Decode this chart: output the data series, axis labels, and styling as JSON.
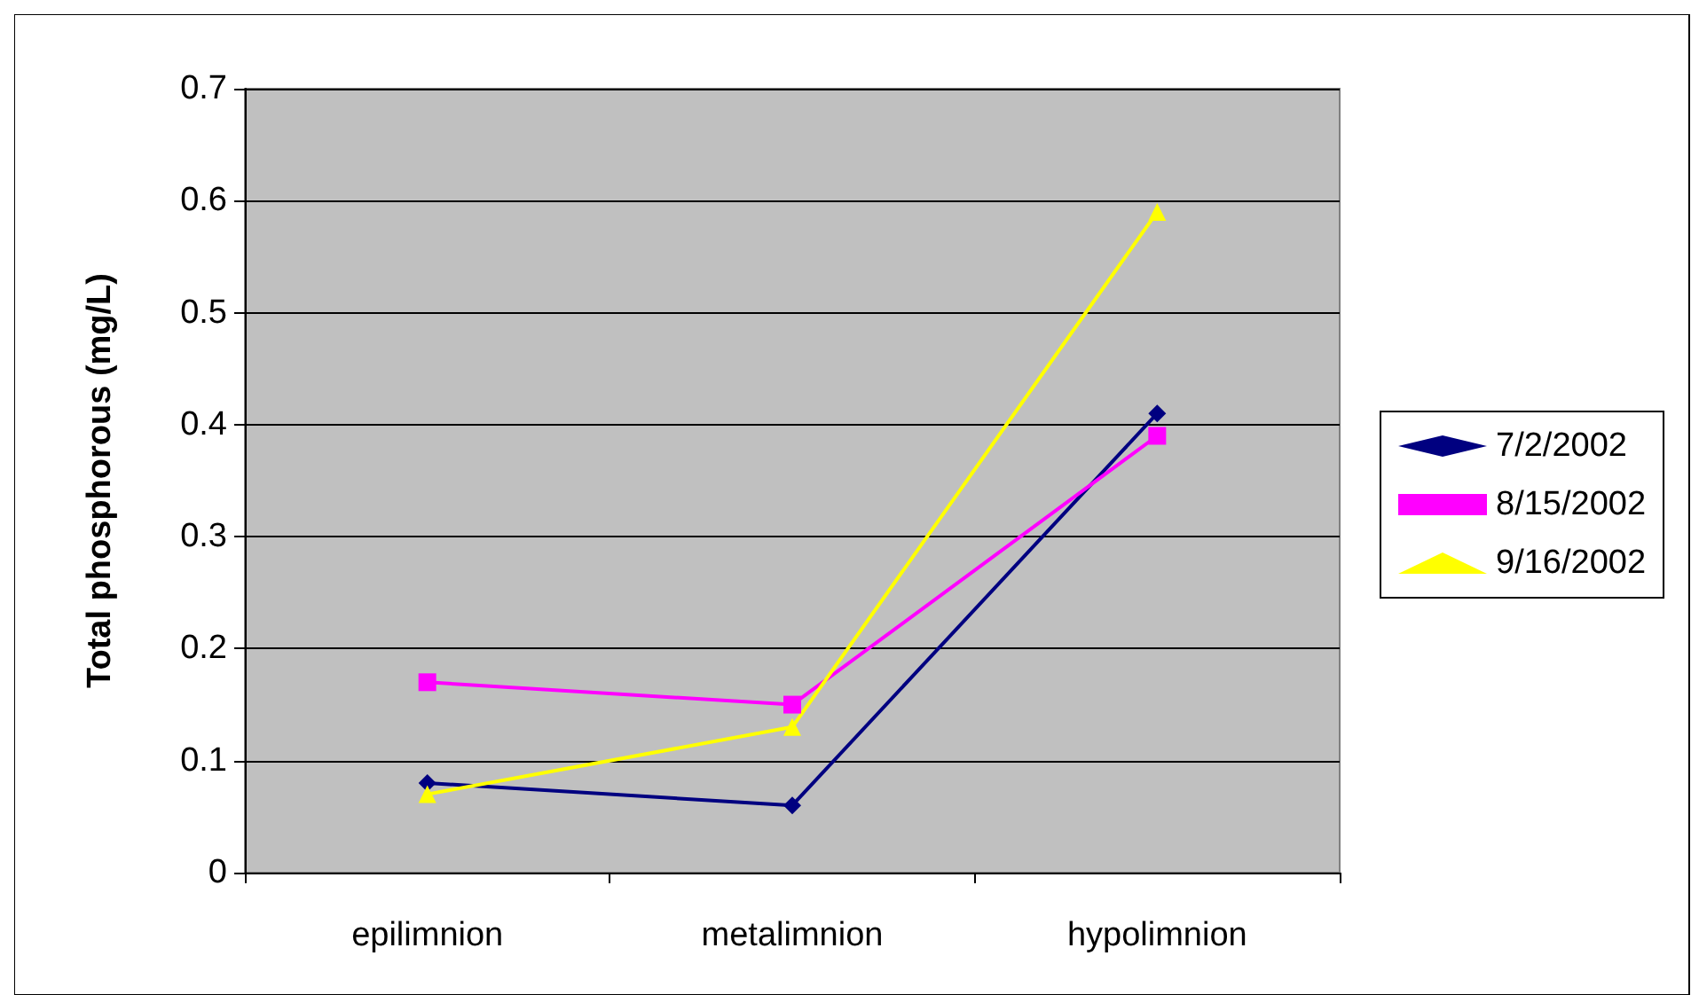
{
  "chart_data": {
    "type": "line",
    "ylabel": "Total phosphorous (mg/L)",
    "categories": [
      "epilimnion",
      "metalimnion",
      "hypolimnion"
    ],
    "series": [
      {
        "name": "7/2/2002",
        "color": "#000080",
        "marker": "diamond",
        "values": [
          0.08,
          0.06,
          0.41
        ]
      },
      {
        "name": "8/15/2002",
        "color": "#ff00ff",
        "marker": "square",
        "values": [
          0.17,
          0.15,
          0.39
        ]
      },
      {
        "name": "9/16/2002",
        "color": "#ffff00",
        "marker": "triangle",
        "values": [
          0.07,
          0.13,
          0.59
        ]
      }
    ],
    "ylim": [
      0,
      0.7
    ],
    "yticks": [
      0,
      0.1,
      0.2,
      0.3,
      0.4,
      0.5,
      0.6,
      0.7
    ],
    "grid": "y",
    "legend": "right",
    "line_style": "solid"
  }
}
